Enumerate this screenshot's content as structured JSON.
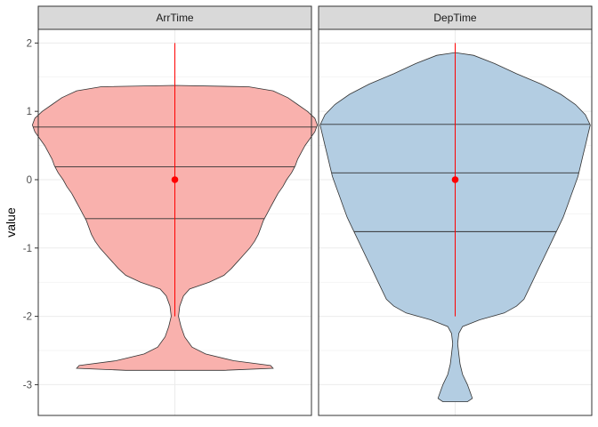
{
  "chart_data": {
    "type": "violin",
    "facets": [
      "ArrTime",
      "DepTime"
    ],
    "ylabel": "value",
    "xlabel": "",
    "ylim": [
      -3.45,
      2.2
    ],
    "yticks": [
      -3,
      -2,
      -1,
      0,
      1,
      2
    ],
    "ytick_labels": [
      "-3",
      "-2",
      "-1",
      "0",
      "1",
      "2"
    ],
    "grid": true,
    "legend": "none",
    "colors": {
      "ArrTime": "#F9B1AD",
      "DepTime": "#B3CDE2",
      "mean_point": "#FF0000",
      "range_line": "#FF0000",
      "quantile_line": "#333333",
      "strip_bg": "#D9D9D9",
      "panel_border": "#333333",
      "grid": "#EBEBEB"
    },
    "series": [
      {
        "facet": "ArrTime",
        "mean": 0,
        "range_line": [
          -2,
          2
        ],
        "quantiles": [
          -0.57,
          0.19,
          0.77
        ],
        "density": [
          [
            -2.79,
            0.4
          ],
          [
            -2.76,
            0.8
          ],
          [
            -2.72,
            0.78
          ],
          [
            -2.65,
            0.48
          ],
          [
            -2.55,
            0.25
          ],
          [
            -2.45,
            0.14
          ],
          [
            -2.3,
            0.08
          ],
          [
            -2.15,
            0.05
          ],
          [
            -2.0,
            0.03
          ],
          [
            -1.85,
            0.04
          ],
          [
            -1.7,
            0.07
          ],
          [
            -1.6,
            0.12
          ],
          [
            -1.5,
            0.28
          ],
          [
            -1.4,
            0.4
          ],
          [
            -1.3,
            0.46
          ],
          [
            -1.2,
            0.51
          ],
          [
            -1.1,
            0.56
          ],
          [
            -1.0,
            0.61
          ],
          [
            -0.9,
            0.65
          ],
          [
            -0.8,
            0.68
          ],
          [
            -0.7,
            0.7
          ],
          [
            -0.6,
            0.72
          ],
          [
            -0.5,
            0.75
          ],
          [
            -0.4,
            0.78
          ],
          [
            -0.3,
            0.81
          ],
          [
            -0.2,
            0.84
          ],
          [
            -0.1,
            0.88
          ],
          [
            0.0,
            0.91
          ],
          [
            0.1,
            0.95
          ],
          [
            0.2,
            0.98
          ],
          [
            0.3,
            1.0
          ],
          [
            0.4,
            1.03
          ],
          [
            0.5,
            1.06
          ],
          [
            0.6,
            1.1
          ],
          [
            0.7,
            1.14
          ],
          [
            0.8,
            1.16
          ],
          [
            0.9,
            1.14
          ],
          [
            1.0,
            1.08
          ],
          [
            1.1,
            1.0
          ],
          [
            1.2,
            0.92
          ],
          [
            1.3,
            0.8
          ],
          [
            1.36,
            0.6
          ],
          [
            1.38,
            0.0
          ]
        ]
      },
      {
        "facet": "DepTime",
        "mean": 0,
        "range_line": [
          -2,
          2
        ],
        "quantiles": [
          -0.76,
          0.1,
          0.81
        ],
        "density": [
          [
            -3.25,
            0.1
          ],
          [
            -3.2,
            0.14
          ],
          [
            -3.1,
            0.12
          ],
          [
            -3.0,
            0.1
          ],
          [
            -2.85,
            0.06
          ],
          [
            -2.7,
            0.04
          ],
          [
            -2.55,
            0.03
          ],
          [
            -2.4,
            0.02
          ],
          [
            -2.25,
            0.03
          ],
          [
            -2.15,
            0.06
          ],
          [
            -2.05,
            0.2
          ],
          [
            -1.95,
            0.4
          ],
          [
            -1.85,
            0.5
          ],
          [
            -1.75,
            0.56
          ],
          [
            -1.6,
            0.6
          ],
          [
            -1.45,
            0.64
          ],
          [
            -1.3,
            0.68
          ],
          [
            -1.15,
            0.72
          ],
          [
            -1.0,
            0.76
          ],
          [
            -0.85,
            0.8
          ],
          [
            -0.7,
            0.84
          ],
          [
            -0.55,
            0.88
          ],
          [
            -0.4,
            0.91
          ],
          [
            -0.25,
            0.94
          ],
          [
            -0.1,
            0.97
          ],
          [
            0.05,
            1.0
          ],
          [
            0.2,
            1.02
          ],
          [
            0.35,
            1.04
          ],
          [
            0.5,
            1.06
          ],
          [
            0.65,
            1.08
          ],
          [
            0.8,
            1.1
          ],
          [
            0.95,
            1.06
          ],
          [
            1.1,
            0.98
          ],
          [
            1.25,
            0.86
          ],
          [
            1.4,
            0.7
          ],
          [
            1.55,
            0.5
          ],
          [
            1.7,
            0.32
          ],
          [
            1.82,
            0.15
          ],
          [
            1.86,
            0.0
          ]
        ]
      }
    ]
  }
}
